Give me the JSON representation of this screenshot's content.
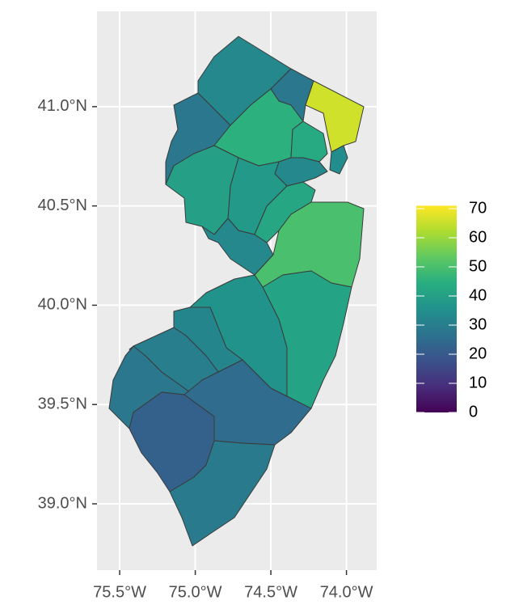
{
  "chart_data": {
    "type": "choropleth",
    "xlim": [
      -75.65,
      -73.8
    ],
    "ylim": [
      38.666,
      41.48
    ],
    "xticks": [
      {
        "value": -75.5,
        "label": "75.5°W"
      },
      {
        "value": -75.0,
        "label": "75.0°W"
      },
      {
        "value": -74.5,
        "label": "74.5°W"
      },
      {
        "value": -74.0,
        "label": "74.0°W"
      }
    ],
    "yticks": [
      {
        "value": 39.0,
        "label": "39.0°N"
      },
      {
        "value": 39.5,
        "label": "39.5°N"
      },
      {
        "value": 40.0,
        "label": "40.0°N"
      },
      {
        "value": 40.5,
        "label": "40.5°N"
      },
      {
        "value": 41.0,
        "label": "41.0°N"
      }
    ],
    "grid": true,
    "values": [
      33,
      28,
      66,
      28,
      45,
      43,
      34,
      33,
      38,
      40,
      42,
      33,
      50,
      41,
      36,
      32,
      30,
      28,
      22,
      25,
      29
    ],
    "colorscale": "viridis",
    "clim": [
      0,
      71
    ],
    "legend_ticks": [
      0,
      10,
      20,
      30,
      40,
      50,
      60,
      70
    ]
  }
}
